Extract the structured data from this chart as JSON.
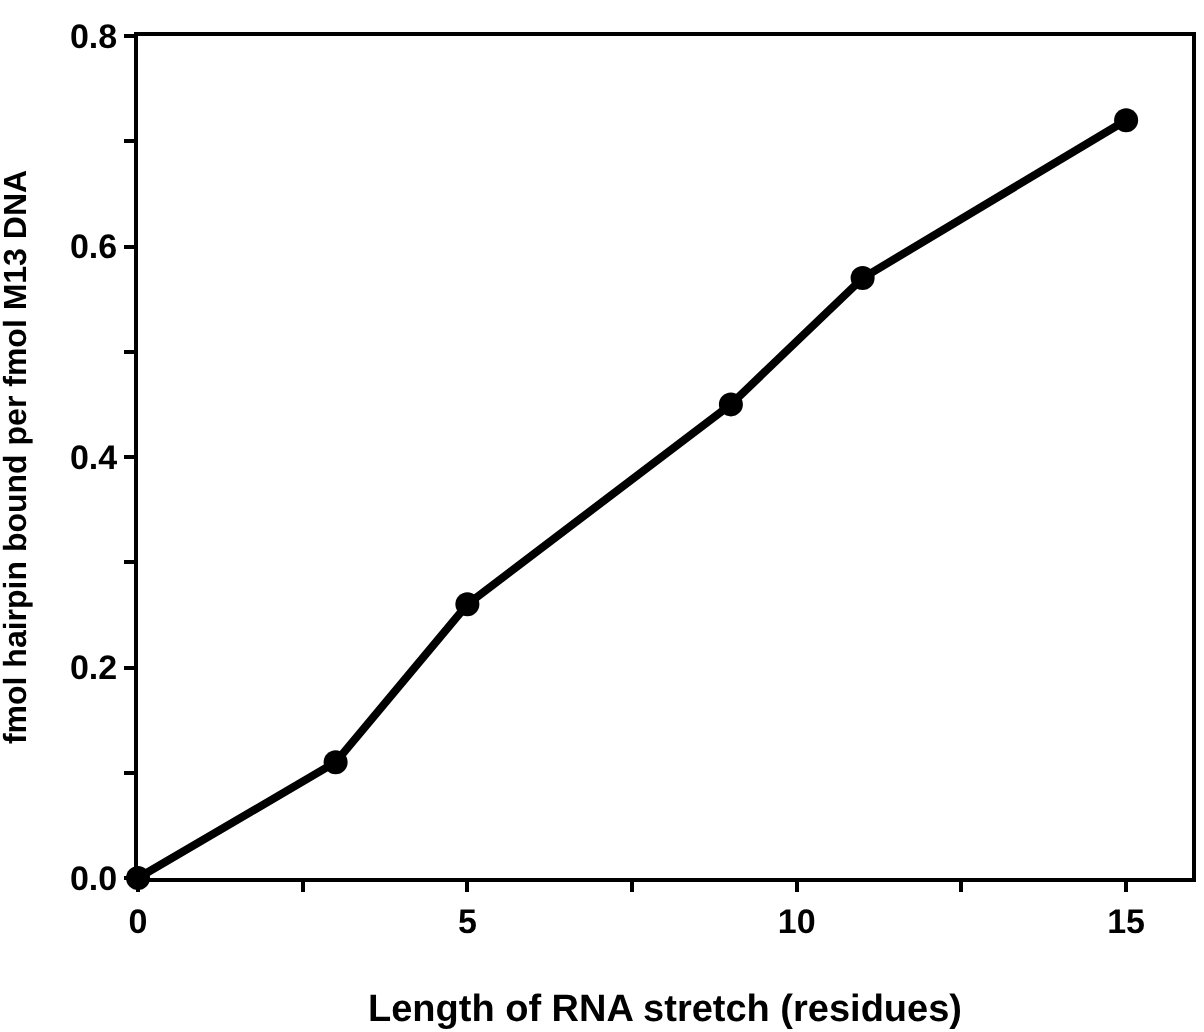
{
  "chart_data": {
    "type": "line",
    "xlabel": "Length of RNA stretch (residues)",
    "ylabel": "fmol hairpin bound per fmol M13 DNA",
    "x": [
      0,
      3,
      5,
      9,
      11,
      15
    ],
    "series": [
      {
        "color": "#000000",
        "values": [
          0,
          0.11,
          0.26,
          0.45,
          0.57,
          0.72
        ]
      }
    ],
    "xlim": [
      0,
      16
    ],
    "xticks": [
      0,
      {
        "value": 2.5,
        "label": null
      },
      5,
      {
        "value": 7.5,
        "label": null
      },
      10,
      {
        "value": 12.5,
        "label": null
      },
      15
    ],
    "ylim": [
      0,
      0.8
    ],
    "yticks": [
      "0.0",
      {
        "value": 0.1,
        "label": null
      },
      0.2,
      {
        "value": 0.3,
        "label": null
      },
      0.4,
      {
        "value": 0.5,
        "label": null
      },
      0.6,
      {
        "value": 0.7,
        "label": null
      },
      0.8
    ],
    "marker": "circle",
    "line_style": "solid"
  }
}
